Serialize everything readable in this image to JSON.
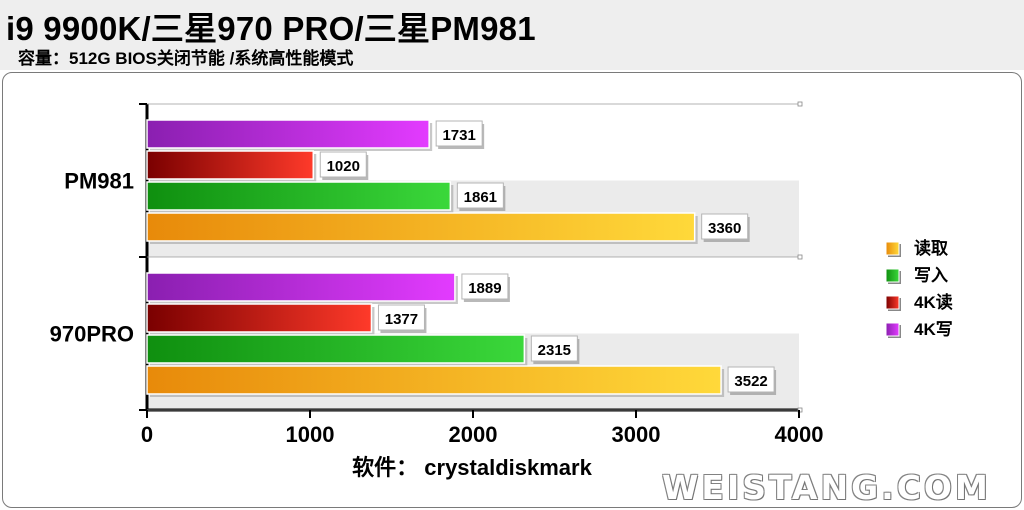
{
  "header": {
    "title": "i9 9900K/三星970 PRO/三星PM981",
    "subtitle": "容量：512G  BIOS关闭节能 /系统高性能模式"
  },
  "watermark": "WEISTANG.COM",
  "chart_data": {
    "type": "bar",
    "orientation": "horizontal",
    "xlabel": "软件：  crystaldiskmark",
    "xlim": [
      0,
      4000
    ],
    "xticks": [
      0,
      1000,
      2000,
      3000,
      4000
    ],
    "categories": [
      "PM981",
      "970PRO"
    ],
    "series": [
      {
        "name": "读取",
        "values": [
          3360,
          3522
        ],
        "color": "#f5a31a"
      },
      {
        "name": "写入",
        "values": [
          1861,
          2315
        ],
        "color": "#1fb51f"
      },
      {
        "name": "4K读",
        "values": [
          1020,
          1377
        ],
        "color": "#c41a1a"
      },
      {
        "name": "4K写",
        "values": [
          1731,
          1889
        ],
        "color": "#b32ee0"
      }
    ],
    "legend_position": "right",
    "grid": false
  }
}
